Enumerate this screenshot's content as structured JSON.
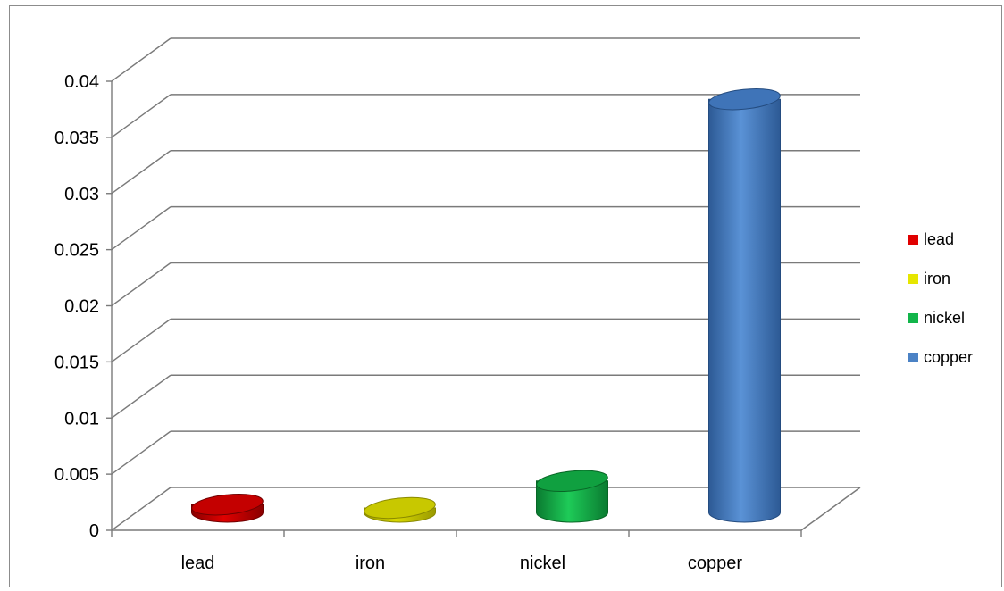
{
  "chart_data": {
    "type": "bar",
    "title": "",
    "xlabel": "",
    "ylabel": "",
    "categories": [
      "lead",
      "iron",
      "nickel",
      "copper"
    ],
    "values": [
      0.0007,
      0.0004,
      0.0028,
      0.0368
    ],
    "colors": [
      "#e00000",
      "#e6e600",
      "#12b54a",
      "#4b82c5"
    ],
    "ylim": [
      0,
      0.04
    ],
    "yticks": [
      "0",
      "0.005",
      "0.01",
      "0.015",
      "0.02",
      "0.025",
      "0.03",
      "0.035",
      "0.04"
    ],
    "grid": true,
    "legend": {
      "position": "right",
      "entries": [
        "lead",
        "iron",
        "nickel",
        "copper"
      ]
    }
  }
}
